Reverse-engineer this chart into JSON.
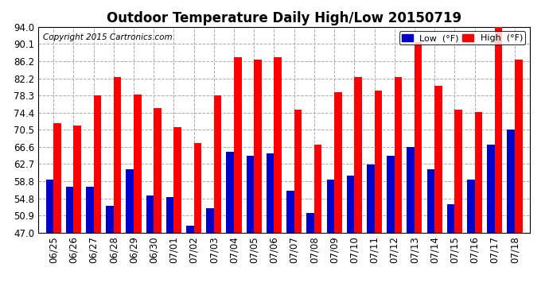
{
  "title": "Outdoor Temperature Daily High/Low 20150719",
  "copyright": "Copyright 2015 Cartronics.com",
  "ytick_labels": [
    "47.0",
    "50.9",
    "54.8",
    "58.8",
    "62.7",
    "66.6",
    "70.5",
    "74.4",
    "78.3",
    "82.2",
    "86.2",
    "90.1",
    "94.0"
  ],
  "ytick_values": [
    47.0,
    50.9,
    54.8,
    58.8,
    62.7,
    66.6,
    70.5,
    74.4,
    78.3,
    82.2,
    86.2,
    90.1,
    94.0
  ],
  "ylim": [
    47.0,
    94.0
  ],
  "categories": [
    "06/25",
    "06/26",
    "06/27",
    "06/28",
    "06/29",
    "06/30",
    "07/01",
    "07/02",
    "07/03",
    "07/04",
    "07/05",
    "07/06",
    "07/07",
    "07/08",
    "07/09",
    "07/10",
    "07/11",
    "07/12",
    "07/13",
    "07/14",
    "07/15",
    "07/16",
    "07/17",
    "07/18"
  ],
  "high": [
    72.0,
    71.5,
    78.3,
    82.5,
    78.5,
    75.5,
    71.0,
    67.5,
    78.3,
    87.0,
    86.5,
    87.0,
    75.0,
    67.0,
    79.0,
    82.5,
    79.5,
    82.5,
    90.5,
    80.5,
    75.0,
    74.5,
    94.0,
    86.5
  ],
  "low": [
    59.0,
    57.5,
    57.5,
    53.0,
    61.5,
    55.5,
    55.0,
    48.5,
    52.5,
    65.5,
    64.5,
    65.0,
    56.5,
    51.5,
    59.0,
    60.0,
    62.5,
    64.5,
    66.5,
    61.5,
    53.5,
    59.0,
    67.0,
    70.5
  ],
  "bar_bottom": 47.0,
  "bar_color_high": "#ff0000",
  "bar_color_low": "#0000cc",
  "background_color": "#ffffff",
  "plot_bg_color": "#ffffff",
  "grid_color": "#aaaaaa",
  "title_fontsize": 12,
  "tick_fontsize": 8.5,
  "copyright_fontsize": 7.5,
  "legend_low_label": "Low  (°F)",
  "legend_high_label": "High  (°F)",
  "bar_width": 0.38
}
